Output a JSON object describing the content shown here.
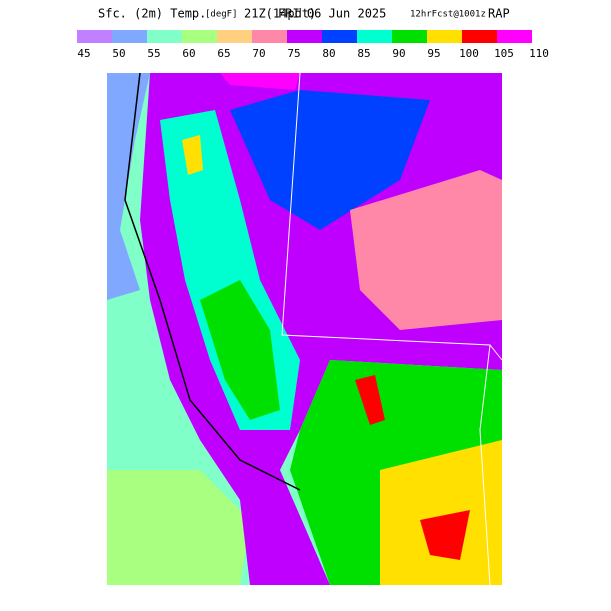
{
  "header": {
    "parts": [
      "Sfc. (2m) Temp.",
      "[degF]",
      "21Z(14pdt)",
      "FRI 06 Jun 2025",
      "12hrFcst@1001z",
      "RAP"
    ]
  },
  "colorbar": {
    "levels": [
      45,
      50,
      55,
      60,
      65,
      70,
      75,
      80,
      85,
      90,
      95,
      100,
      105,
      110
    ],
    "colors": [
      "#c080ff",
      "#80a8ff",
      "#80ffc8",
      "#a8ff80",
      "#ffd080",
      "#ff88a8",
      "#c000ff",
      "#0040ff",
      "#00ffd0",
      "#00e000",
      "#ffe000",
      "#ff0000",
      "#ff00ff"
    ]
  }
}
